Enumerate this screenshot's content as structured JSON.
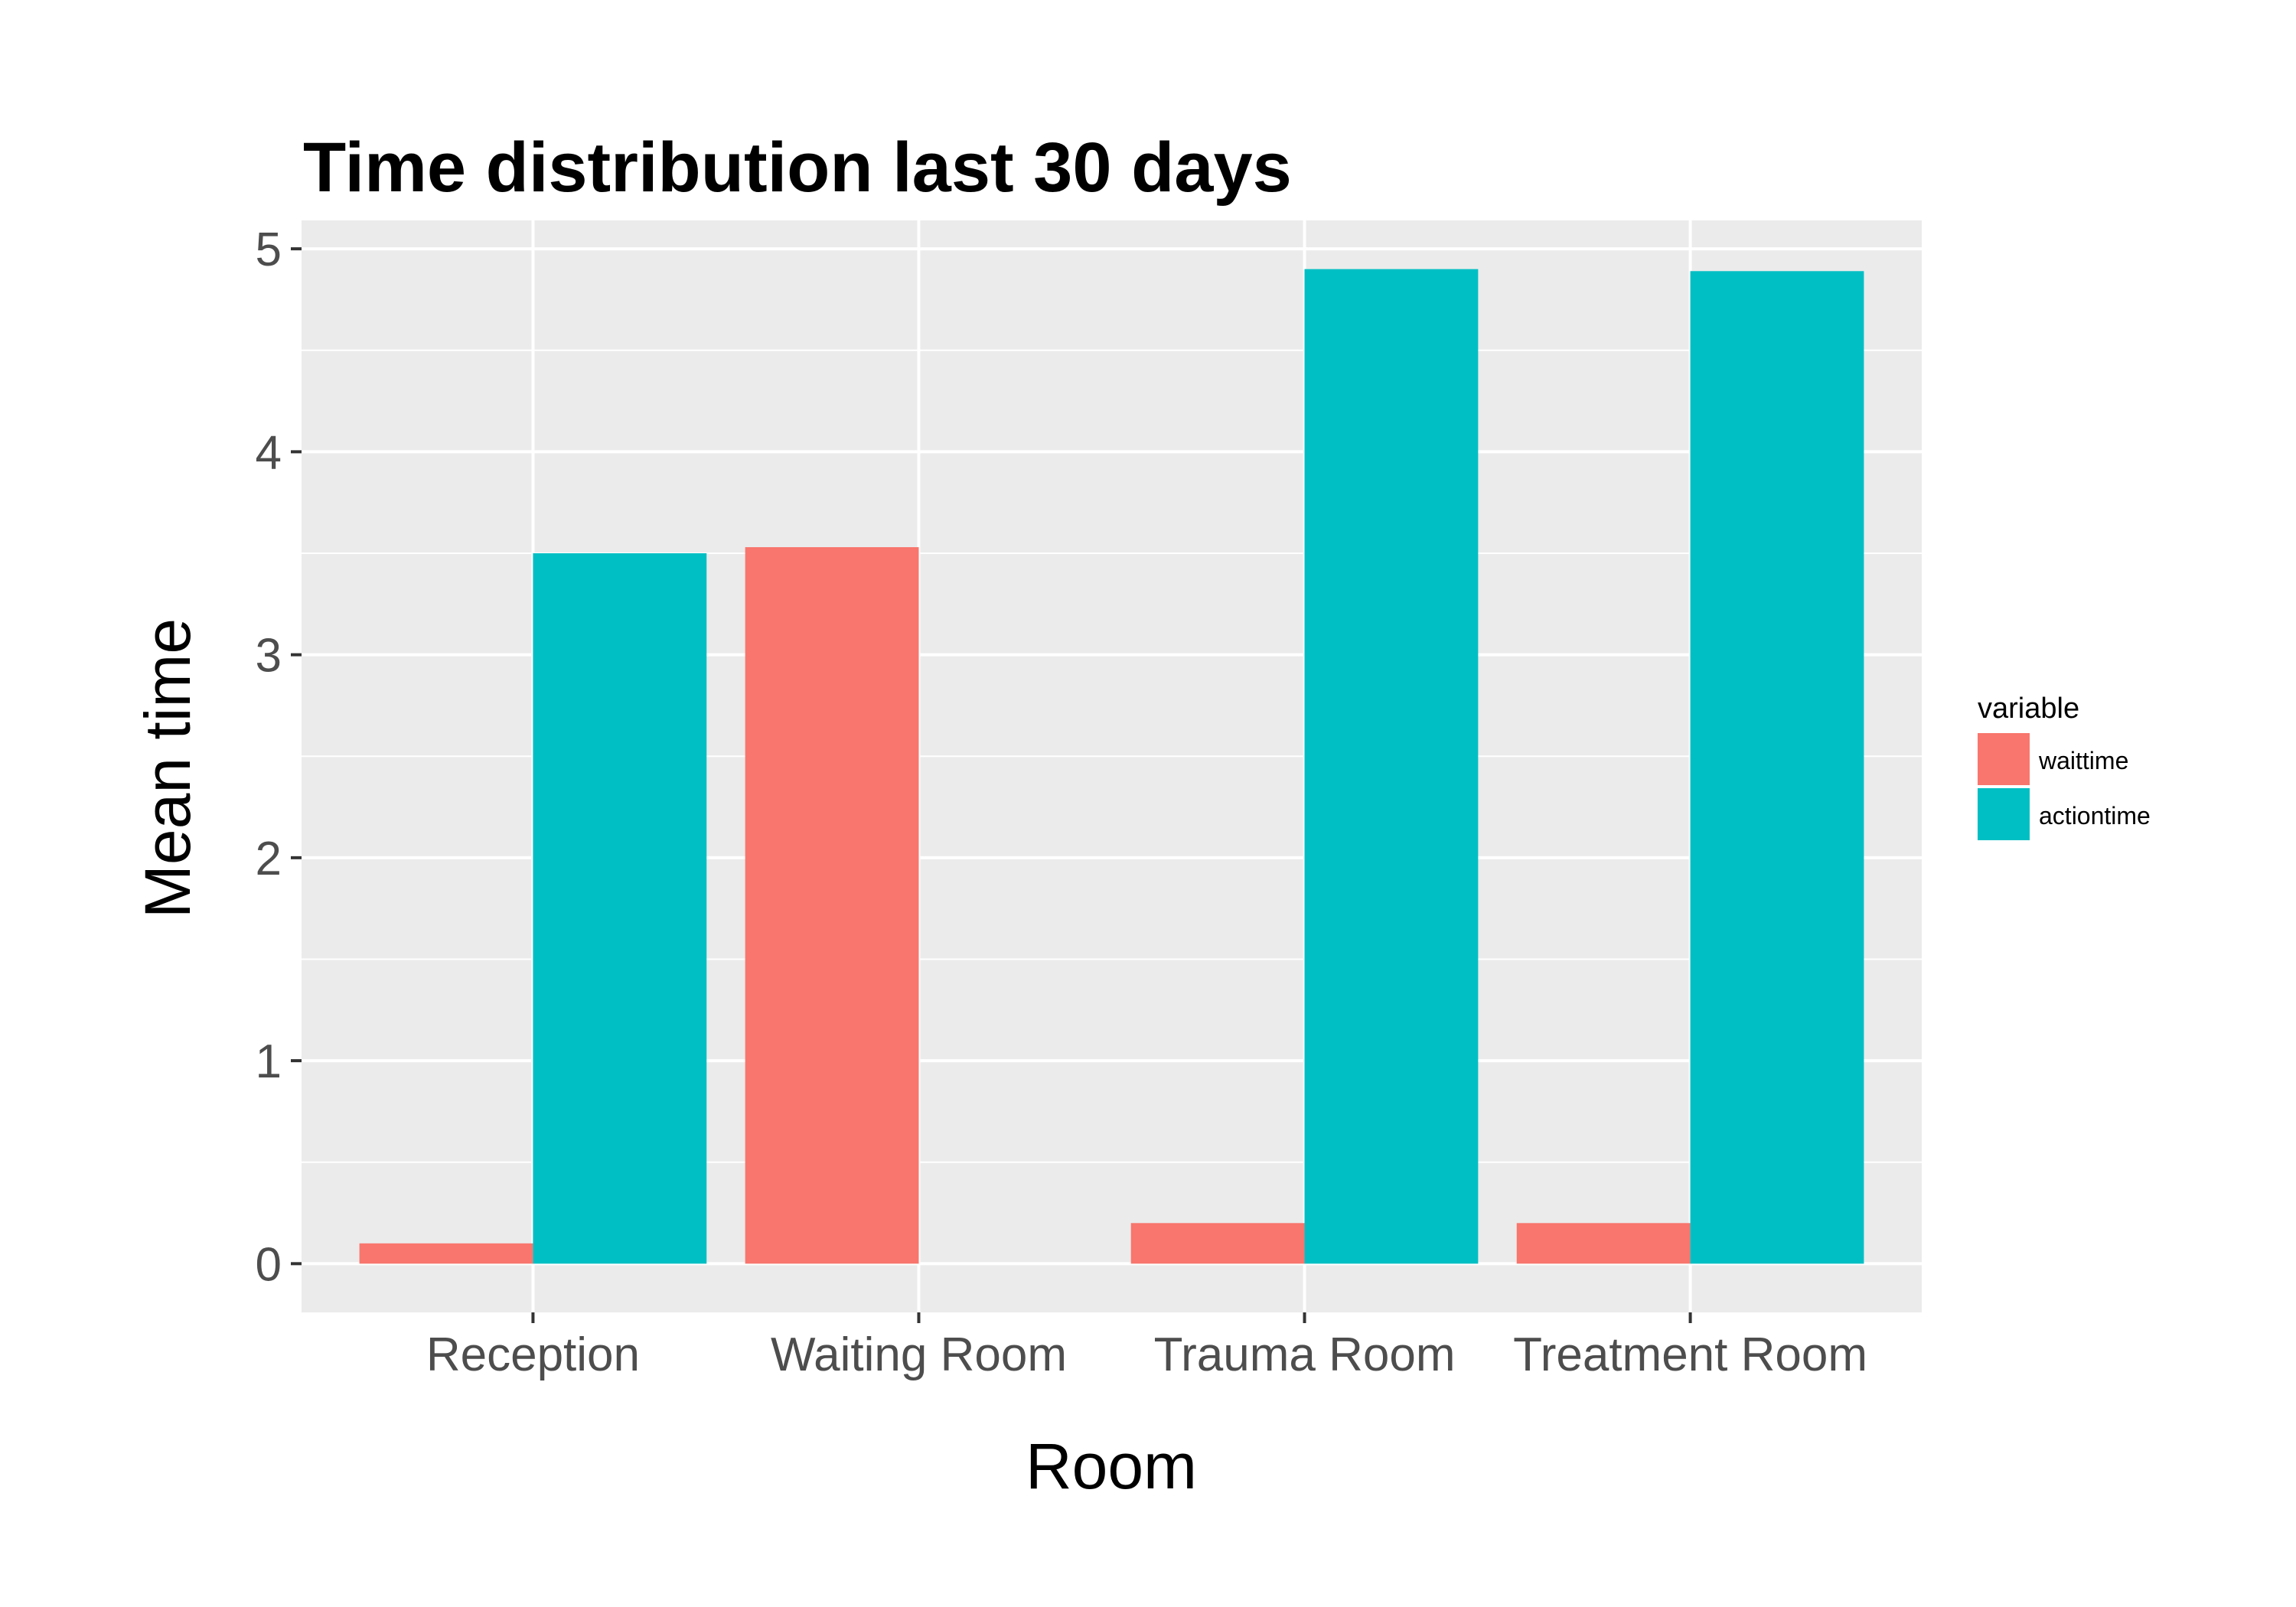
{
  "chart_data": {
    "type": "bar",
    "title": "Time distribution last 30 days",
    "xlabel": "Room",
    "ylabel": "Mean time",
    "categories": [
      "Reception",
      "Waiting Room",
      "Trauma Room",
      "Treatment Room"
    ],
    "series": [
      {
        "name": "waittime",
        "color": "#F8766D",
        "values": [
          0.1,
          3.53,
          0.2,
          0.2
        ]
      },
      {
        "name": "actiontime",
        "color": "#00BFC4",
        "values": [
          3.5,
          0,
          4.9,
          4.89
        ]
      }
    ],
    "ylim": [
      -0.24,
      5.14
    ],
    "yticks": [
      0,
      1,
      2,
      3,
      4,
      5
    ],
    "ytick_labels": [
      "0",
      "1",
      "2",
      "3",
      "4",
      "5"
    ],
    "grid": true,
    "legend": {
      "title": "variable",
      "position": "right"
    },
    "panel_background": "#EBEBEB",
    "grid_color": "#FFFFFF"
  }
}
